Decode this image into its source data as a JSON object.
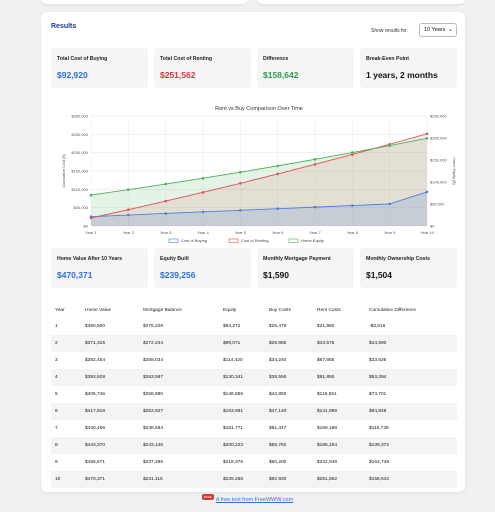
{
  "results": {
    "title": "Results",
    "show_label": "Show results for:",
    "select_value": "10 Years"
  },
  "stats_top": [
    {
      "label": "Total Cost of Buying",
      "value": "$92,920",
      "color": "blue"
    },
    {
      "label": "Total Cost of Renting",
      "value": "$251,562",
      "color": "red"
    },
    {
      "label": "Difference",
      "value": "$158,642",
      "color": "green"
    },
    {
      "label": "Break-Even Point",
      "value": "1 years, 2 months",
      "color": "black"
    }
  ],
  "stats_bottom": [
    {
      "label": "Home Value After 10 Years",
      "value": "$470,371",
      "color": "blue"
    },
    {
      "label": "Equity Built",
      "value": "$239,256",
      "color": "blue"
    },
    {
      "label": "Monthly Mortgage Payment",
      "value": "$1,590",
      "color": "black"
    },
    {
      "label": "Monthly Ownership Costs",
      "value": "$1,504",
      "color": "black"
    }
  ],
  "chart_data": {
    "type": "line",
    "title": "Rent vs Buy Comparison Over Time",
    "ylabel": "Cumulative Cost ($)",
    "y2label": "Home Equity ($)",
    "categories": [
      "Year 1",
      "Year 2",
      "Year 3",
      "Year 4",
      "Year 5",
      "Year 6",
      "Year 7",
      "Year 8",
      "Year 9",
      "Year 10"
    ],
    "ylim": [
      0,
      300000
    ],
    "y2lim": [
      0,
      250000
    ],
    "yticks": [
      "$0",
      "$50,000",
      "$100,000",
      "$150,000",
      "$200,000",
      "$250,000",
      "$300,000"
    ],
    "y2ticks": [
      "$0",
      "$50,000",
      "$100,000",
      "$150,000",
      "$200,000",
      "$250,000"
    ],
    "grid": true,
    "legend": "bottom",
    "series": [
      {
        "name": "Cost of Buying",
        "color": "#4a7fe0",
        "values": [
          25476,
          29885,
          34240,
          38556,
          42850,
          47140,
          51447,
          55782,
          60200,
          92920
        ]
      },
      {
        "name": "Cost of Renting",
        "color": "#e05252",
        "values": [
          21960,
          44575,
          67865,
          91850,
          116551,
          141989,
          168188,
          195164,
          222948,
          251562
        ]
      },
      {
        "name": "Home Equity",
        "color": "#4caf5a",
        "values": [
          84272,
          99071,
          114420,
          130341,
          146856,
          163991,
          181771,
          200223,
          219375,
          239256
        ]
      }
    ]
  },
  "table": {
    "headers": [
      "Year",
      "Home Value",
      "Mortgage Balance",
      "Equity",
      "Buy Costs",
      "Rent Costs",
      "Cumulative Difference"
    ],
    "rows": [
      [
        "1",
        "$360,500",
        "$276,228",
        "$84,272",
        "$25,476",
        "$21,960",
        "-$3,516"
      ],
      [
        "2",
        "$371,315",
        "$272,244",
        "$99,071",
        "$29,885",
        "$44,575",
        "$14,690"
      ],
      [
        "3",
        "$382,454",
        "$268,034",
        "$114,420",
        "$34,240",
        "$67,865",
        "$33,626"
      ],
      [
        "4",
        "$393,928",
        "$263,587",
        "$130,341",
        "$38,556",
        "$91,850",
        "$53,294"
      ],
      [
        "5",
        "$405,746",
        "$258,890",
        "$146,856",
        "$42,850",
        "$116,551",
        "$73,701"
      ],
      [
        "6",
        "$417,918",
        "$253,927",
        "$163,991",
        "$47,140",
        "$141,989",
        "$94,848"
      ],
      [
        "7",
        "$430,456",
        "$248,684",
        "$181,771",
        "$51,447",
        "$168,188",
        "$116,739"
      ],
      [
        "8",
        "$443,370",
        "$243,146",
        "$200,223",
        "$55,782",
        "$195,164",
        "$139,372"
      ],
      [
        "9",
        "$456,671",
        "$237,295",
        "$219,375",
        "$60,200",
        "$222,948",
        "$162,748"
      ],
      [
        "10",
        "$470,371",
        "$231,115",
        "$239,256",
        "$92,920",
        "$251,562",
        "$158,642"
      ]
    ]
  },
  "footer": {
    "badge": "FREE",
    "link": "A free tool from FreeWWW.com"
  }
}
